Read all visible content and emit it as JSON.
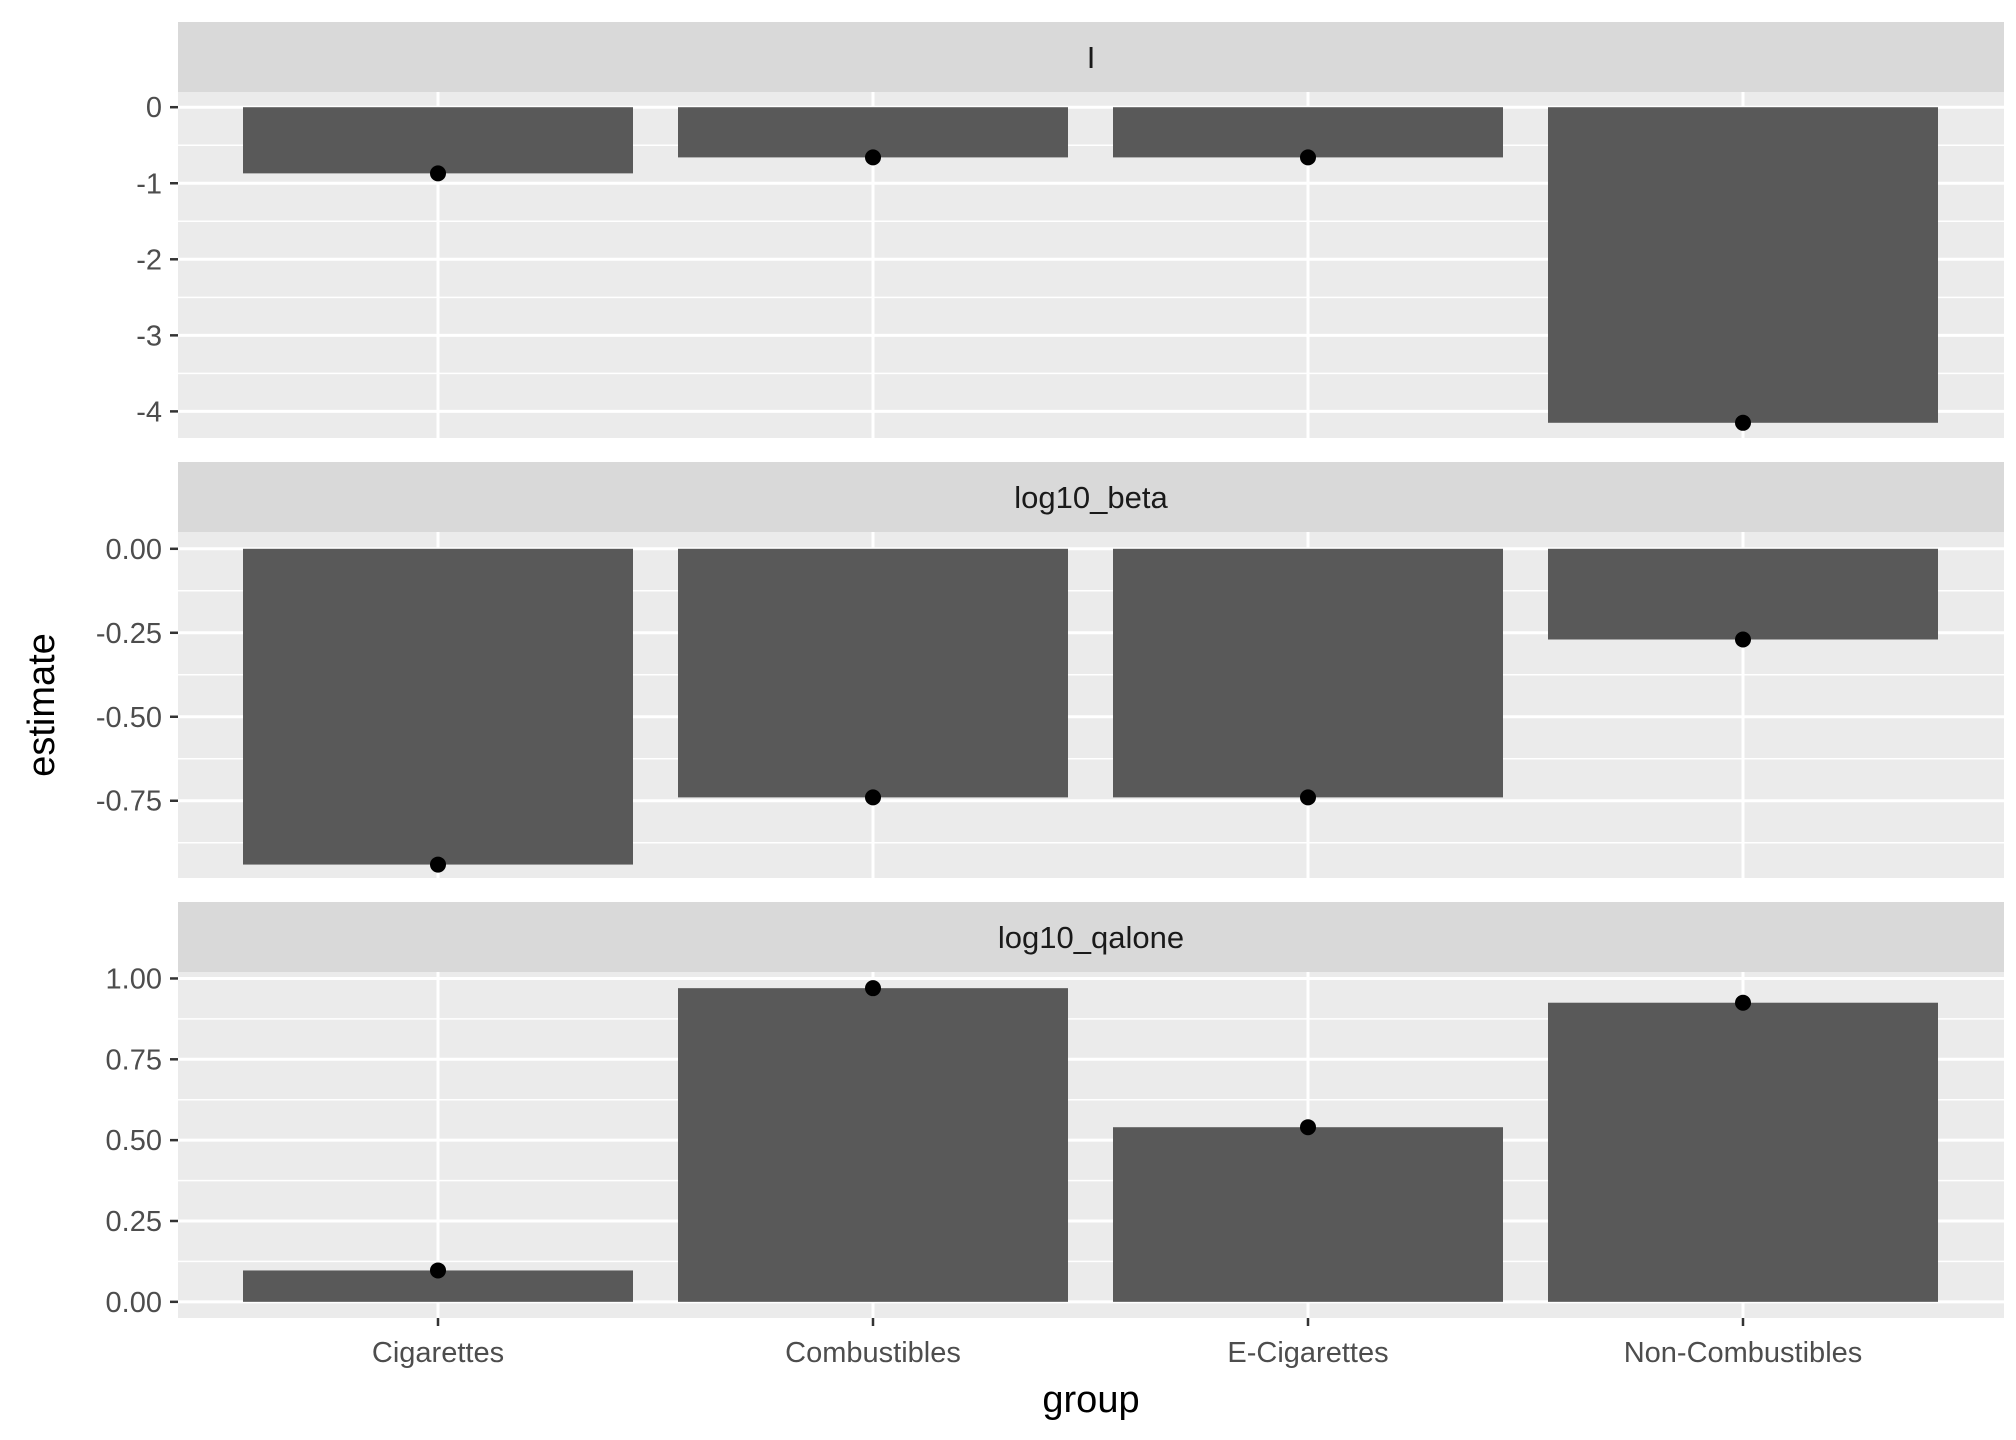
{
  "chart_data": {
    "type": "bar",
    "xlabel": "group",
    "ylabel": "estimate",
    "categories": [
      "Cigarettes",
      "Combustibles",
      "E-Cigarettes",
      "Non-Combustibles"
    ],
    "facets": [
      {
        "label": "I",
        "values": [
          -0.87,
          -0.66,
          -0.66,
          -4.15
        ],
        "ylim": [
          -4.35,
          0.2
        ],
        "yticks": [
          0,
          -1,
          -2,
          -3,
          -4
        ],
        "ytick_labels": [
          "0",
          "-1",
          "-2",
          "-3",
          "-4"
        ]
      },
      {
        "label": "log10_beta",
        "values": [
          -0.94,
          -0.74,
          -0.74,
          -0.27
        ],
        "ylim": [
          -0.98,
          0.05
        ],
        "yticks": [
          0,
          -0.25,
          -0.5,
          -0.75
        ],
        "ytick_labels": [
          "0.00",
          "-0.25",
          "-0.50",
          "-0.75"
        ]
      },
      {
        "label": "log10_qalone",
        "values": [
          0.097,
          0.97,
          0.54,
          0.925
        ],
        "ylim": [
          -0.05,
          1.02
        ],
        "yticks": [
          0,
          0.25,
          0.5,
          0.75,
          1.0
        ],
        "ytick_labels": [
          "0.00",
          "0.25",
          "0.50",
          "0.75",
          "1.00"
        ]
      }
    ],
    "legend": "none",
    "grid": true,
    "colors": {
      "panel_bg": "#ebebeb",
      "strip_bg": "#d9d9d9",
      "bar_fill": "#595959",
      "point": "#000000",
      "grid": "#ffffff"
    }
  }
}
